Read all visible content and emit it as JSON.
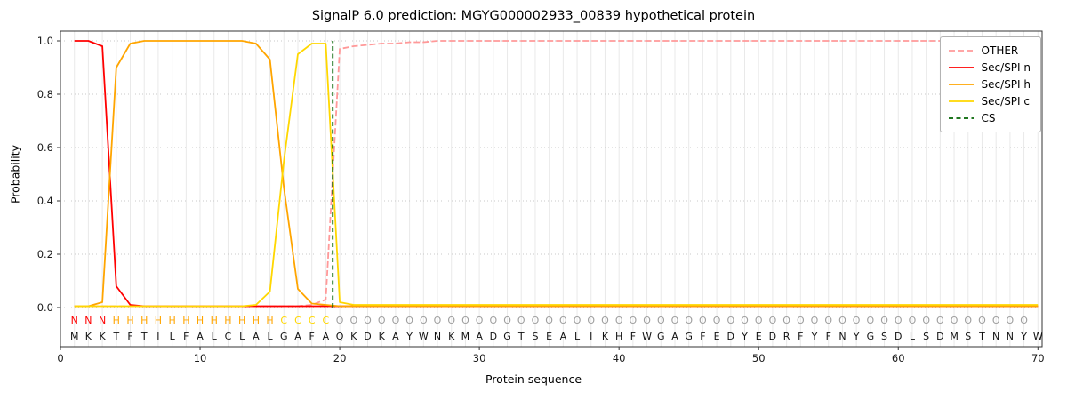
{
  "chart_data": {
    "type": "line",
    "title": "SignalP 6.0 prediction: MGYG000002933_00839 hypothetical protein",
    "xlabel": "Protein sequence",
    "ylabel": "Probability",
    "xlim": [
      0,
      70.3
    ],
    "ylim": [
      0,
      1.05
    ],
    "xticks": [
      0,
      10,
      20,
      30,
      40,
      50,
      60,
      70
    ],
    "yticks": [
      0,
      0.2,
      0.4,
      0.6,
      0.8,
      1.0
    ],
    "grid": true,
    "legend_position": "upper right",
    "sequence": "MKKTFTILFALCLALGAFAQKDKAYWNKMADGTSEALIKHFWGAGFEDYEDRFYFNYGSDLSDMSTNNYW",
    "region_labels": "NNNHHHHHHHHHHHHCCCCOOOOOOOOOOOOOOOOOOOOOOOOOOOOOOOOOOOOOOOOOOOOOOOOOO",
    "label_colors": {
      "N": "#ff0000",
      "H": "#ffa500",
      "C": "#ffd700",
      "O": "#9e9e9e"
    },
    "cs_position": 19.5,
    "cs": {
      "name": "CS",
      "color": "#006400",
      "dash": "5 3.5"
    },
    "series": [
      {
        "name": "OTHER",
        "color": "#ff9999",
        "dash": "7 3",
        "values": [
          0.005,
          0.005,
          0.005,
          0.005,
          0.005,
          0.005,
          0.005,
          0.005,
          0.005,
          0.005,
          0.005,
          0.005,
          0.005,
          0.005,
          0.005,
          0.005,
          0.005,
          0.01,
          0.03,
          0.97,
          0.98,
          0.985,
          0.99,
          0.99,
          0.995,
          0.995,
          1.0,
          1.0,
          1.0,
          1.0,
          1.0,
          1.0,
          1.0,
          1.0,
          1.0,
          1.0,
          1.0,
          1.0,
          1.0,
          1.0,
          1.0,
          1.0,
          1.0,
          1.0,
          1.0,
          1.0,
          1.0,
          1.0,
          1.0,
          1.0,
          1.0,
          1.0,
          1.0,
          1.0,
          1.0,
          1.0,
          1.0,
          1.0,
          1.0,
          1.0,
          1.0,
          1.0,
          1.0,
          1.0,
          1.0,
          1.0,
          1.0,
          1.0,
          1.0,
          1.0
        ]
      },
      {
        "name": "Sec/SPI n",
        "color": "#ff0000",
        "dash": null,
        "values": [
          1.0,
          1.0,
          0.98,
          0.08,
          0.01,
          0.005,
          0.005,
          0.005,
          0.005,
          0.005,
          0.005,
          0.005,
          0.005,
          0.005,
          0.005,
          0.005,
          0.005,
          0.005,
          0.005,
          0.005,
          0.005,
          0.005,
          0.005,
          0.005,
          0.005,
          0.005,
          0.005,
          0.005,
          0.005,
          0.005,
          0.005,
          0.005,
          0.005,
          0.005,
          0.005,
          0.005,
          0.005,
          0.005,
          0.005,
          0.005,
          0.005,
          0.005,
          0.005,
          0.005,
          0.005,
          0.005,
          0.005,
          0.005,
          0.005,
          0.005,
          0.005,
          0.005,
          0.005,
          0.005,
          0.005,
          0.005,
          0.005,
          0.005,
          0.005,
          0.005,
          0.005,
          0.005,
          0.005,
          0.005,
          0.005,
          0.005,
          0.005,
          0.005,
          0.005,
          0.005
        ]
      },
      {
        "name": "Sec/SPI h",
        "color": "#ffa500",
        "dash": null,
        "values": [
          0.005,
          0.005,
          0.02,
          0.9,
          0.99,
          1.0,
          1.0,
          1.0,
          1.0,
          1.0,
          1.0,
          1.0,
          1.0,
          0.99,
          0.93,
          0.45,
          0.07,
          0.015,
          0.01,
          0.005,
          0.005,
          0.005,
          0.005,
          0.005,
          0.005,
          0.005,
          0.005,
          0.005,
          0.005,
          0.005,
          0.005,
          0.005,
          0.005,
          0.005,
          0.005,
          0.005,
          0.005,
          0.005,
          0.005,
          0.005,
          0.005,
          0.005,
          0.005,
          0.005,
          0.005,
          0.005,
          0.005,
          0.005,
          0.005,
          0.005,
          0.005,
          0.005,
          0.005,
          0.005,
          0.005,
          0.005,
          0.005,
          0.005,
          0.005,
          0.005,
          0.005,
          0.005,
          0.005,
          0.005,
          0.005,
          0.005,
          0.005,
          0.005,
          0.005,
          0.005
        ]
      },
      {
        "name": "Sec/SPI c",
        "color": "#ffd700",
        "dash": null,
        "values": [
          0.005,
          0.005,
          0.005,
          0.005,
          0.005,
          0.005,
          0.005,
          0.005,
          0.005,
          0.005,
          0.005,
          0.005,
          0.005,
          0.01,
          0.06,
          0.55,
          0.95,
          0.99,
          0.99,
          0.02,
          0.01,
          0.01,
          0.01,
          0.01,
          0.01,
          0.01,
          0.01,
          0.01,
          0.01,
          0.01,
          0.01,
          0.01,
          0.01,
          0.01,
          0.01,
          0.01,
          0.01,
          0.01,
          0.01,
          0.01,
          0.01,
          0.01,
          0.01,
          0.01,
          0.01,
          0.01,
          0.01,
          0.01,
          0.01,
          0.01,
          0.01,
          0.01,
          0.01,
          0.01,
          0.01,
          0.01,
          0.01,
          0.01,
          0.01,
          0.01,
          0.01,
          0.01,
          0.01,
          0.01,
          0.01,
          0.01,
          0.01,
          0.01,
          0.01,
          0.01
        ]
      }
    ],
    "legend": [
      {
        "label": "OTHER",
        "color": "#ff9999",
        "dash": "7 3"
      },
      {
        "label": "Sec/SPI n",
        "color": "#ff0000",
        "dash": null
      },
      {
        "label": "Sec/SPI h",
        "color": "#ffa500",
        "dash": null
      },
      {
        "label": "Sec/SPI c",
        "color": "#ffd700",
        "dash": null
      },
      {
        "label": "CS",
        "color": "#006400",
        "dash": "5 3.5"
      }
    ]
  }
}
